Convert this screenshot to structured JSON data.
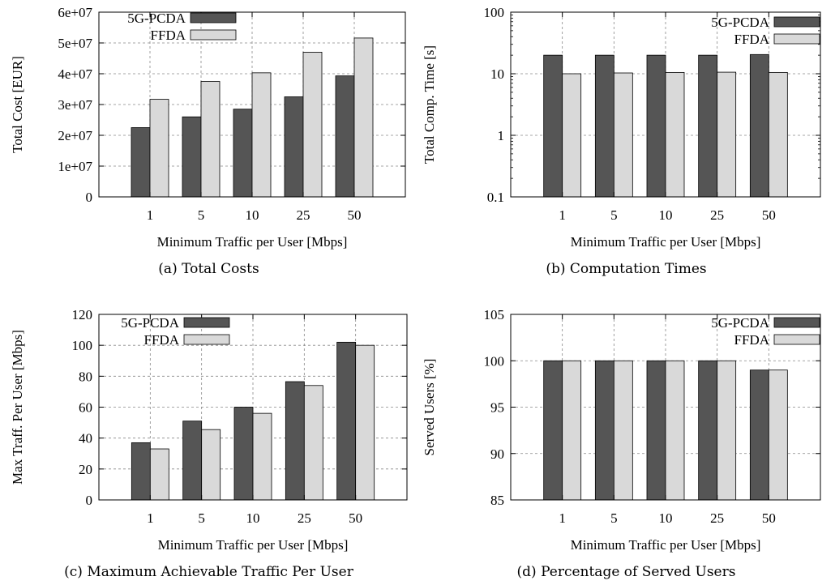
{
  "legend_labels": {
    "s1": "5G-PCDA",
    "s2": "FFDA"
  },
  "colors": {
    "s1": "#555555",
    "s2": "#d9d9d9",
    "grid": "#888888"
  },
  "chart_data": [
    {
      "type": "bar",
      "caption": "(a) Total Costs",
      "xlabel": "Minimum Traffic per User [Mbps]",
      "ylabel": "Total Cost [EUR]",
      "categories": [
        "1",
        "5",
        "10",
        "25",
        "50"
      ],
      "series": [
        {
          "name": "5G-PCDA",
          "values": [
            22500000,
            26000000,
            28500000,
            32500000,
            39300000
          ]
        },
        {
          "name": "FFDA",
          "values": [
            31700000,
            37500000,
            40300000,
            47000000,
            51600000
          ]
        }
      ],
      "scale": "linear",
      "ylim": [
        0,
        60000000
      ],
      "yticks": [
        0,
        10000000,
        20000000,
        30000000,
        40000000,
        50000000,
        60000000
      ],
      "ytick_labels": [
        "0",
        "1e+07",
        "2e+07",
        "3e+07",
        "4e+07",
        "5e+07",
        "6e+07"
      ],
      "legend": "top-left",
      "grid": true
    },
    {
      "type": "bar",
      "caption": "(b) Computation Times",
      "xlabel": "Minimum Traffic per User [Mbps]",
      "ylabel": "Total Comp. Time [s]",
      "categories": [
        "1",
        "5",
        "10",
        "25",
        "50"
      ],
      "series": [
        {
          "name": "5G-PCDA",
          "values": [
            20,
            20,
            20,
            20,
            20.5
          ]
        },
        {
          "name": "FFDA",
          "values": [
            10,
            10.3,
            10.5,
            10.6,
            10.5
          ]
        }
      ],
      "scale": "log",
      "ylim": [
        0.1,
        100
      ],
      "yticks": [
        0.1,
        1,
        10,
        100
      ],
      "ytick_labels": [
        "0.1",
        "1",
        "10",
        "100"
      ],
      "legend": "top-right",
      "grid": true
    },
    {
      "type": "bar",
      "caption": "(c) Maximum Achievable Traffic Per User",
      "xlabel": "Minimum Traffic per User [Mbps]",
      "ylabel": "Max Traff. Per User [Mbps]",
      "categories": [
        "1",
        "5",
        "10",
        "25",
        "50"
      ],
      "series": [
        {
          "name": "5G-PCDA",
          "values": [
            37,
            51,
            60,
            76.5,
            102
          ]
        },
        {
          "name": "FFDA",
          "values": [
            33,
            45.5,
            56,
            74,
            100
          ]
        }
      ],
      "scale": "linear",
      "ylim": [
        0,
        120
      ],
      "yticks": [
        0,
        20,
        40,
        60,
        80,
        100,
        120
      ],
      "ytick_labels": [
        "0",
        "20",
        "40",
        "60",
        "80",
        "100",
        "120"
      ],
      "legend": "top-left",
      "grid": true
    },
    {
      "type": "bar",
      "caption": "(d) Percentage of Served Users",
      "xlabel": "Minimum Traffic per User [Mbps]",
      "ylabel": "Served Users [%]",
      "categories": [
        "1",
        "5",
        "10",
        "25",
        "50"
      ],
      "series": [
        {
          "name": "5G-PCDA",
          "values": [
            100,
            100,
            100,
            100,
            99
          ]
        },
        {
          "name": "FFDA",
          "values": [
            100,
            100,
            100,
            100,
            99
          ]
        }
      ],
      "scale": "linear",
      "ylim": [
        85,
        105
      ],
      "yticks": [
        85,
        90,
        95,
        100,
        105
      ],
      "ytick_labels": [
        "85",
        "90",
        "95",
        "100",
        "105"
      ],
      "legend": "top-right",
      "grid": true
    }
  ]
}
